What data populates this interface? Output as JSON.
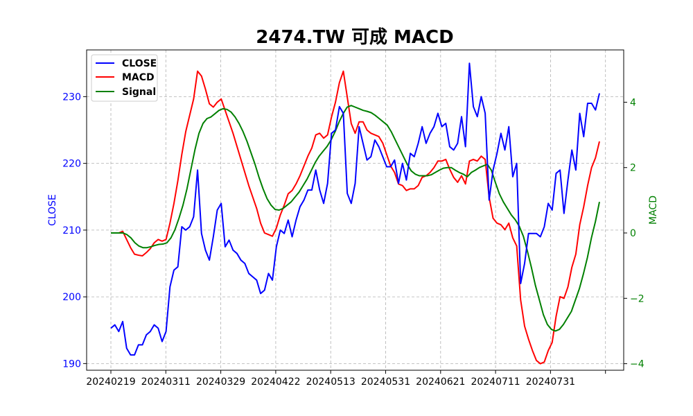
{
  "chart_data": {
    "type": "line",
    "title": "2474.TW 可成 MACD",
    "ylabel_left": "CLOSE",
    "ylabel_right": "MACD",
    "ylim_left": [
      189,
      237
    ],
    "ylim_right": [
      -4.2,
      5.6
    ],
    "yticks_left": [
      190,
      200,
      210,
      220,
      230
    ],
    "yticks_right": [
      -4,
      -2,
      0,
      2,
      4
    ],
    "ytick_labels_right": [
      "−4",
      "−2",
      "0",
      "2",
      "4"
    ],
    "x_tick_labels": [
      "20240219",
      "20240311",
      "20240329",
      "20240422",
      "20240513",
      "20240531",
      "20240621",
      "20240711",
      "20240731",
      ""
    ],
    "grid": true,
    "legend_position": "upper-left",
    "colors": {
      "CLOSE": "#0000ff",
      "MACD": "#ff0000",
      "Signal": "#008000"
    },
    "series": [
      {
        "name": "CLOSE",
        "axis": "left",
        "values": [
          195.3,
          195.8,
          194.8,
          196.3,
          192.3,
          191.3,
          191.3,
          192.8,
          192.8,
          194.3,
          194.8,
          195.8,
          195.3,
          193.3,
          194.8,
          201.5,
          204.0,
          204.5,
          210.5,
          210.0,
          210.5,
          212.0,
          219.0,
          209.5,
          207.0,
          205.5,
          209.0,
          213.0,
          214.0,
          207.5,
          208.5,
          207.0,
          206.5,
          205.5,
          205.0,
          203.5,
          203.0,
          202.5,
          200.5,
          201.0,
          203.5,
          202.5,
          207.5,
          210.0,
          209.5,
          211.5,
          209.0,
          211.5,
          213.5,
          214.5,
          216.0,
          216.0,
          219.0,
          216.0,
          214.0,
          217.0,
          224.5,
          225.0,
          228.5,
          227.5,
          215.5,
          214.0,
          217.0,
          225.5,
          223.0,
          220.5,
          221.0,
          223.5,
          222.5,
          221.0,
          219.5,
          219.5,
          220.5,
          217.0,
          220.0,
          217.5,
          221.5,
          221.0,
          223.0,
          225.5,
          223.0,
          224.5,
          225.5,
          227.5,
          225.5,
          226.0,
          222.5,
          222.0,
          223.0,
          227.0,
          222.5,
          235.0,
          228.5,
          227.0,
          230.0,
          227.5,
          214.5,
          219.0,
          221.5,
          224.5,
          222.0,
          225.5,
          218.0,
          220.0,
          202.0,
          205.0,
          209.5,
          209.5,
          209.5,
          209.0,
          210.5,
          214.0,
          213.0,
          218.5,
          219.0,
          212.5,
          217.5,
          222.0,
          219.0,
          227.5,
          224.0,
          229.0,
          229.0,
          228.0,
          230.5
        ]
      },
      {
        "name": "MACD",
        "axis": "right",
        "values": [
          0.0,
          0.0,
          0.0,
          0.05,
          -0.2,
          -0.45,
          -0.65,
          -0.68,
          -0.7,
          -0.6,
          -0.48,
          -0.3,
          -0.2,
          -0.25,
          -0.2,
          0.3,
          0.9,
          1.6,
          2.4,
          3.1,
          3.6,
          4.1,
          4.95,
          4.8,
          4.4,
          3.95,
          3.85,
          4.0,
          4.1,
          3.75,
          3.4,
          3.05,
          2.65,
          2.25,
          1.85,
          1.45,
          1.1,
          0.75,
          0.3,
          0.0,
          -0.05,
          -0.1,
          0.15,
          0.55,
          0.85,
          1.2,
          1.3,
          1.5,
          1.75,
          2.05,
          2.35,
          2.6,
          3.0,
          3.05,
          2.9,
          3.0,
          3.55,
          4.0,
          4.6,
          4.95,
          4.15,
          3.35,
          3.05,
          3.4,
          3.4,
          3.15,
          3.05,
          3.0,
          2.95,
          2.75,
          2.4,
          2.05,
          1.85,
          1.5,
          1.45,
          1.3,
          1.35,
          1.35,
          1.45,
          1.7,
          1.75,
          1.85,
          2.0,
          2.2,
          2.2,
          2.25,
          1.95,
          1.7,
          1.55,
          1.75,
          1.5,
          2.2,
          2.25,
          2.2,
          2.35,
          2.25,
          1.1,
          0.45,
          0.3,
          0.25,
          0.1,
          0.3,
          -0.15,
          -0.4,
          -2.05,
          -2.85,
          -3.25,
          -3.6,
          -3.9,
          -4.0,
          -3.95,
          -3.6,
          -3.35,
          -2.55,
          -1.95,
          -2.0,
          -1.65,
          -1.05,
          -0.65,
          0.25,
          0.8,
          1.45,
          2.0,
          2.3,
          2.8
        ]
      },
      {
        "name": "Signal",
        "axis": "right",
        "values": [
          0.0,
          0.0,
          0.0,
          0.0,
          -0.05,
          -0.15,
          -0.3,
          -0.4,
          -0.45,
          -0.45,
          -0.42,
          -0.38,
          -0.35,
          -0.34,
          -0.3,
          -0.15,
          0.1,
          0.45,
          0.85,
          1.35,
          1.95,
          2.55,
          3.05,
          3.35,
          3.5,
          3.55,
          3.65,
          3.75,
          3.8,
          3.78,
          3.7,
          3.55,
          3.35,
          3.1,
          2.8,
          2.45,
          2.1,
          1.7,
          1.35,
          1.05,
          0.85,
          0.72,
          0.7,
          0.75,
          0.85,
          0.95,
          1.1,
          1.25,
          1.45,
          1.65,
          1.9,
          2.15,
          2.35,
          2.5,
          2.65,
          2.85,
          3.1,
          3.4,
          3.65,
          3.85,
          3.9,
          3.85,
          3.8,
          3.75,
          3.72,
          3.68,
          3.6,
          3.5,
          3.4,
          3.3,
          3.1,
          2.85,
          2.6,
          2.35,
          2.1,
          1.9,
          1.8,
          1.75,
          1.75,
          1.75,
          1.78,
          1.85,
          1.92,
          1.98,
          2.0,
          2.0,
          1.92,
          1.85,
          1.8,
          1.72,
          1.85,
          1.92,
          2.0,
          2.05,
          2.1,
          1.92,
          1.55,
          1.2,
          0.95,
          0.75,
          0.55,
          0.4,
          0.2,
          -0.1,
          -0.55,
          -1.05,
          -1.6,
          -2.05,
          -2.5,
          -2.8,
          -2.95,
          -3.0,
          -2.95,
          -2.8,
          -2.6,
          -2.4,
          -2.05,
          -1.7,
          -1.25,
          -0.75,
          -0.15,
          0.35,
          0.95
        ]
      }
    ]
  }
}
